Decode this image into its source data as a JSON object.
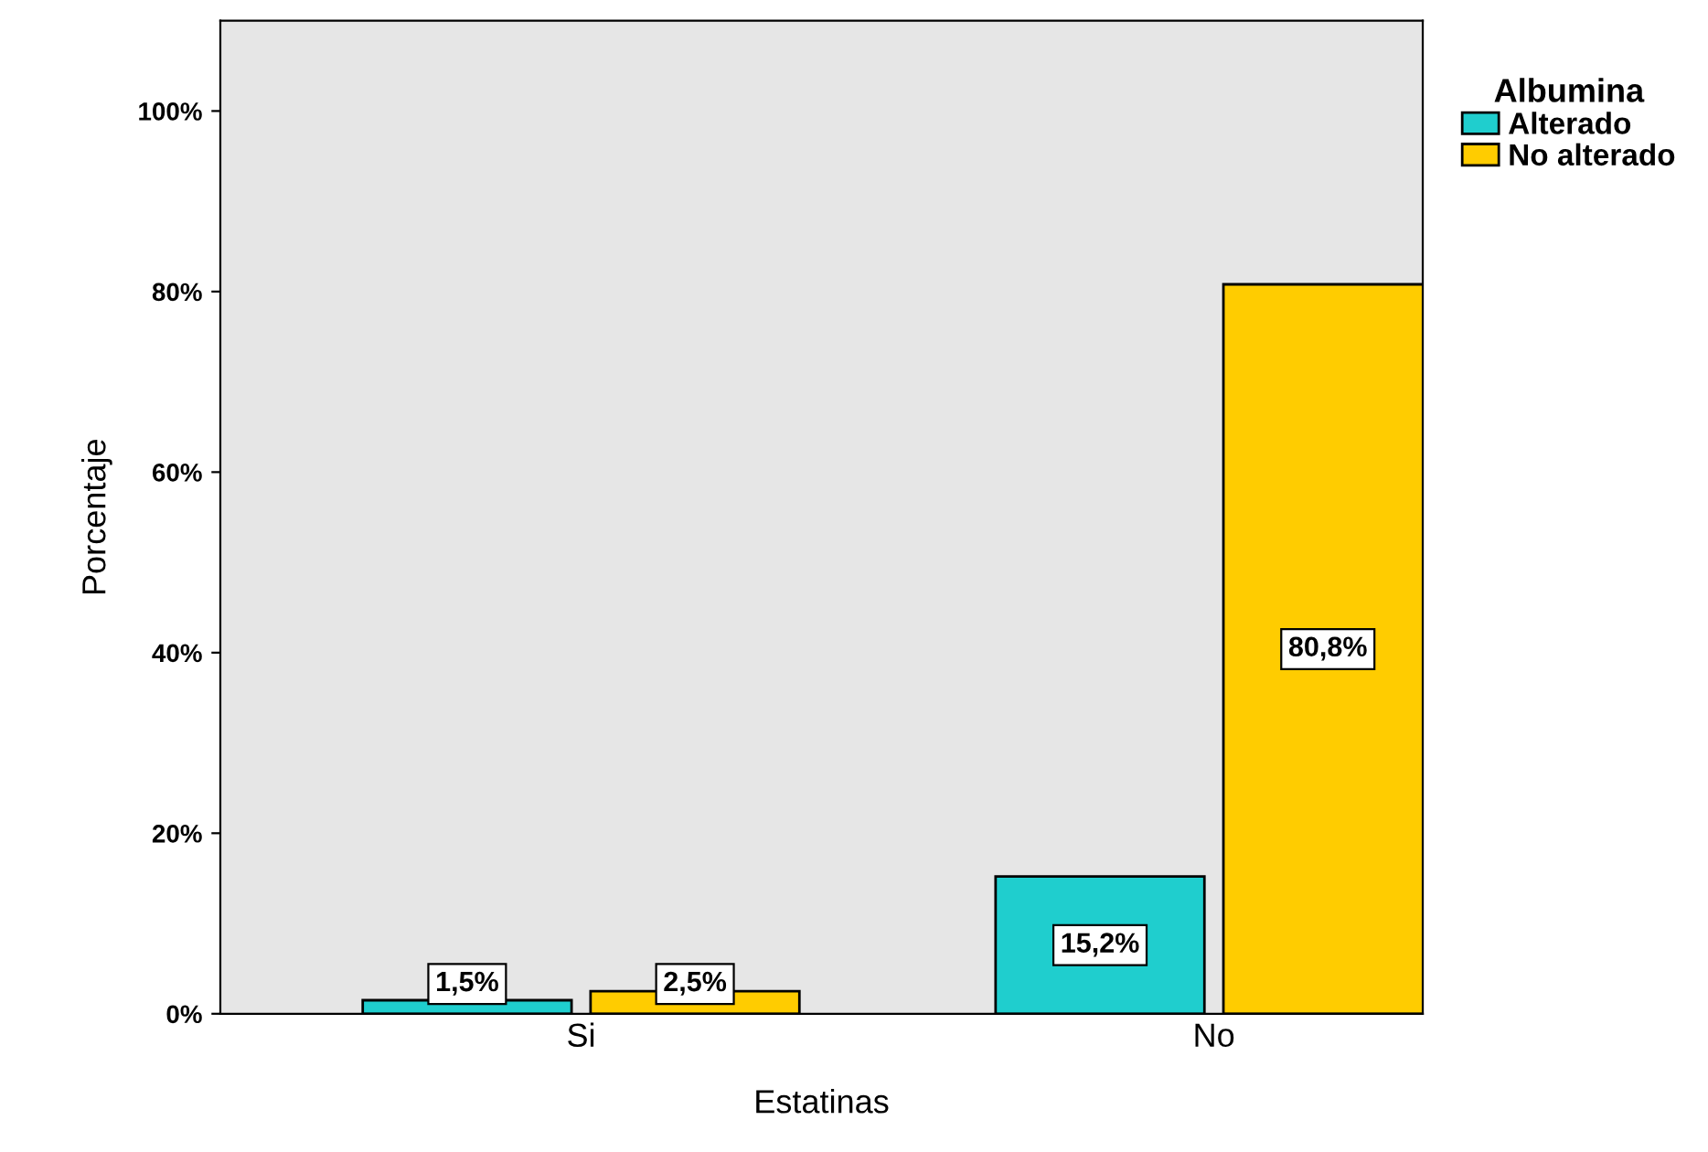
{
  "chart_data": {
    "type": "bar",
    "xlabel": "Estatinas",
    "ylabel": "Porcentaje",
    "legend_title": "Albumina",
    "legend": "top right",
    "grid": false,
    "categories": [
      "Si",
      "No"
    ],
    "series": [
      {
        "name": "Alterado",
        "color": "#1fcece",
        "values": [
          1.5,
          15.2
        ],
        "value_labels": [
          "1,5%",
          "15,2%"
        ]
      },
      {
        "name": "No alterado",
        "color": "#ffcc00",
        "values": [
          2.5,
          80.8
        ],
        "value_labels": [
          "2,5%",
          "80,8%"
        ]
      }
    ],
    "ylim": [
      0,
      110
    ],
    "yticks": [
      {
        "value": 0,
        "label": "0%"
      },
      {
        "value": 20,
        "label": "20%"
      },
      {
        "value": 40,
        "label": "40%"
      },
      {
        "value": 60,
        "label": "60%"
      },
      {
        "value": 80,
        "label": "80%"
      },
      {
        "value": 100,
        "label": "100%"
      }
    ]
  }
}
